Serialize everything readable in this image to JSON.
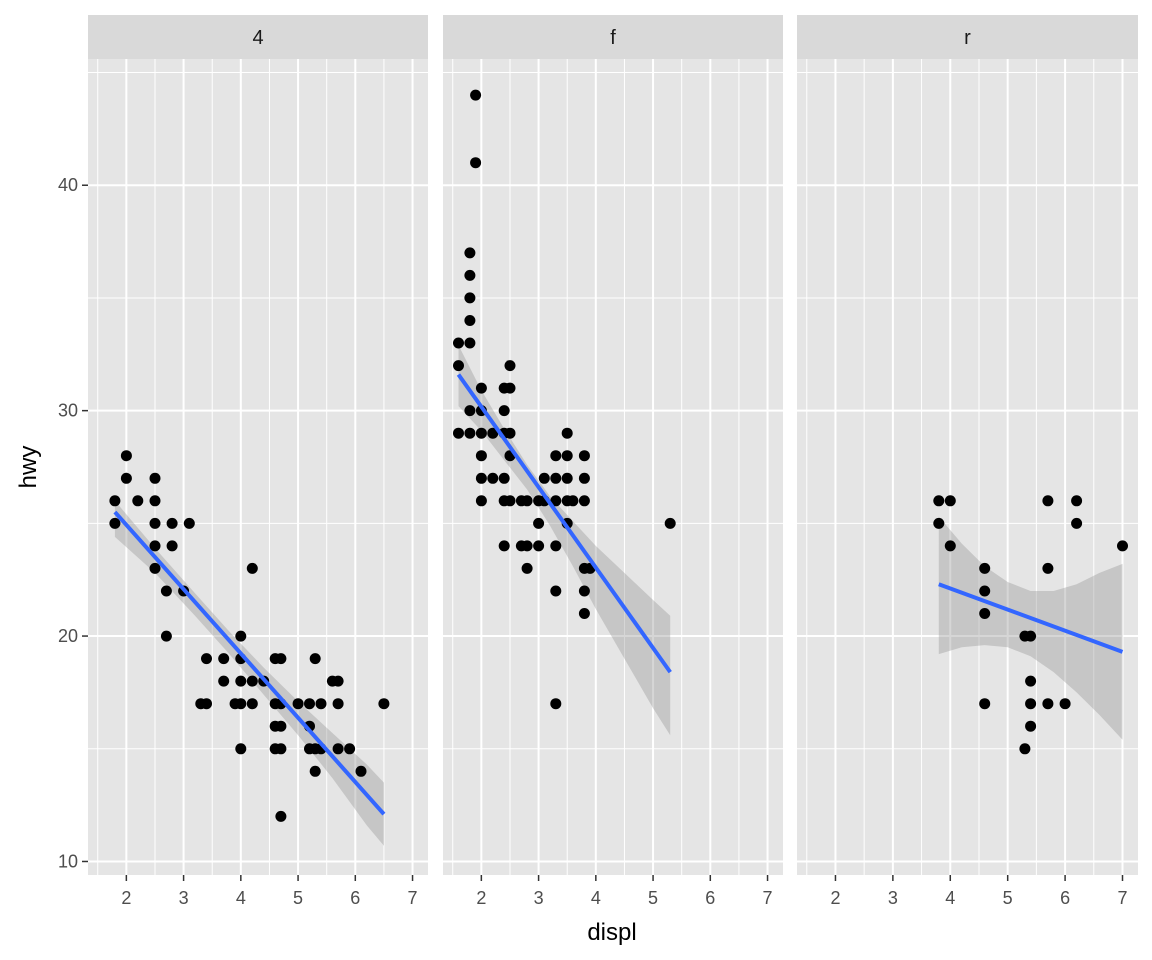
{
  "chart_data": {
    "type": "scatter",
    "xlabel": "displ",
    "ylabel": "hwy",
    "xlim": [
      1.33,
      7.27
    ],
    "ylim": [
      9.4,
      45.6
    ],
    "x_ticks": [
      2,
      3,
      4,
      5,
      6,
      7
    ],
    "y_ticks": [
      10,
      20,
      30,
      40
    ],
    "grid": true,
    "colors": {
      "panel_bg": "#e5e5e5",
      "strip_bg": "#d9d9d9",
      "grid": "#ffffff",
      "points": "#000000",
      "smooth_line": "#3366ff",
      "ribbon": "#999999"
    },
    "facets": [
      {
        "label": "4",
        "points": [
          [
            1.8,
            26
          ],
          [
            1.8,
            25
          ],
          [
            2.0,
            28
          ],
          [
            2.0,
            27
          ],
          [
            2.2,
            26
          ],
          [
            2.5,
            27
          ],
          [
            2.5,
            26
          ],
          [
            2.5,
            25
          ],
          [
            2.5,
            24
          ],
          [
            2.5,
            23
          ],
          [
            2.7,
            22
          ],
          [
            2.7,
            20
          ],
          [
            2.8,
            25
          ],
          [
            2.8,
            24
          ],
          [
            3.0,
            22
          ],
          [
            3.1,
            25
          ],
          [
            3.3,
            17
          ],
          [
            3.4,
            19
          ],
          [
            3.4,
            17
          ],
          [
            3.7,
            19
          ],
          [
            3.7,
            18
          ],
          [
            3.9,
            17
          ],
          [
            4.0,
            20
          ],
          [
            4.0,
            19
          ],
          [
            4.0,
            18
          ],
          [
            4.0,
            17
          ],
          [
            4.0,
            15
          ],
          [
            4.2,
            23
          ],
          [
            4.2,
            18
          ],
          [
            4.2,
            17
          ],
          [
            4.4,
            18
          ],
          [
            4.6,
            19
          ],
          [
            4.6,
            17
          ],
          [
            4.6,
            16
          ],
          [
            4.6,
            15
          ],
          [
            4.7,
            19
          ],
          [
            4.7,
            17
          ],
          [
            4.7,
            16
          ],
          [
            4.7,
            15
          ],
          [
            4.7,
            12
          ],
          [
            5.0,
            17
          ],
          [
            5.2,
            17
          ],
          [
            5.2,
            16
          ],
          [
            5.2,
            15
          ],
          [
            5.3,
            19
          ],
          [
            5.3,
            15
          ],
          [
            5.3,
            14
          ],
          [
            5.4,
            17
          ],
          [
            5.4,
            15
          ],
          [
            5.6,
            18
          ],
          [
            5.7,
            18
          ],
          [
            5.7,
            17
          ],
          [
            5.7,
            15
          ],
          [
            5.9,
            15
          ],
          [
            6.1,
            14
          ],
          [
            6.5,
            17
          ]
        ],
        "smooth": {
          "x": [
            1.8,
            6.5
          ],
          "y": [
            25.5,
            12.1
          ]
        },
        "ribbon": {
          "x": [
            1.8,
            2.5,
            3.2,
            3.8,
            4.4,
            5.0,
            5.6,
            6.2,
            6.5
          ],
          "upper": [
            26.0,
            23.9,
            21.9,
            20.2,
            18.6,
            17.1,
            15.7,
            14.3,
            13.5
          ],
          "lower": [
            24.4,
            22.8,
            20.9,
            19.2,
            17.4,
            15.6,
            13.7,
            11.6,
            10.7
          ]
        }
      },
      {
        "label": "f",
        "points": [
          [
            1.6,
            33
          ],
          [
            1.6,
            32
          ],
          [
            1.6,
            29
          ],
          [
            1.8,
            37
          ],
          [
            1.8,
            36
          ],
          [
            1.8,
            35
          ],
          [
            1.8,
            34
          ],
          [
            1.8,
            33
          ],
          [
            1.8,
            30
          ],
          [
            1.8,
            29
          ],
          [
            1.9,
            44
          ],
          [
            1.9,
            41
          ],
          [
            2.0,
            31
          ],
          [
            2.0,
            30
          ],
          [
            2.0,
            29
          ],
          [
            2.0,
            28
          ],
          [
            2.0,
            27
          ],
          [
            2.0,
            26
          ],
          [
            2.2,
            29
          ],
          [
            2.2,
            27
          ],
          [
            2.4,
            31
          ],
          [
            2.4,
            30
          ],
          [
            2.4,
            29
          ],
          [
            2.4,
            27
          ],
          [
            2.4,
            26
          ],
          [
            2.4,
            24
          ],
          [
            2.5,
            32
          ],
          [
            2.5,
            31
          ],
          [
            2.5,
            29
          ],
          [
            2.5,
            28
          ],
          [
            2.5,
            26
          ],
          [
            2.7,
            26
          ],
          [
            2.7,
            24
          ],
          [
            2.8,
            26
          ],
          [
            2.8,
            24
          ],
          [
            2.8,
            23
          ],
          [
            3.0,
            26
          ],
          [
            3.0,
            25
          ],
          [
            3.0,
            24
          ],
          [
            3.1,
            27
          ],
          [
            3.1,
            26
          ],
          [
            3.3,
            28
          ],
          [
            3.3,
            27
          ],
          [
            3.3,
            26
          ],
          [
            3.3,
            24
          ],
          [
            3.3,
            22
          ],
          [
            3.3,
            17
          ],
          [
            3.5,
            29
          ],
          [
            3.5,
            28
          ],
          [
            3.5,
            27
          ],
          [
            3.5,
            26
          ],
          [
            3.5,
            25
          ],
          [
            3.6,
            26
          ],
          [
            3.8,
            28
          ],
          [
            3.8,
            27
          ],
          [
            3.8,
            26
          ],
          [
            3.8,
            23
          ],
          [
            3.8,
            22
          ],
          [
            3.8,
            21
          ],
          [
            3.9,
            23
          ],
          [
            5.3,
            25
          ]
        ],
        "smooth": {
          "x": [
            1.6,
            5.3
          ],
          "y": [
            31.6,
            18.4
          ]
        },
        "ribbon": {
          "x": [
            1.6,
            2.0,
            2.4,
            2.8,
            3.2,
            3.6,
            4.0,
            4.5,
            5.0,
            5.3
          ],
          "upper": [
            32.9,
            30.9,
            29.2,
            27.6,
            26.2,
            25.1,
            24.0,
            22.8,
            21.6,
            20.9
          ],
          "lower": [
            30.2,
            29.1,
            27.8,
            26.5,
            24.9,
            23.1,
            21.2,
            19.0,
            16.8,
            15.6
          ]
        }
      },
      {
        "label": "r",
        "points": [
          [
            3.8,
            26
          ],
          [
            3.8,
            25
          ],
          [
            4.0,
            26
          ],
          [
            4.0,
            24
          ],
          [
            4.6,
            23
          ],
          [
            4.6,
            22
          ],
          [
            4.6,
            21
          ],
          [
            4.6,
            17
          ],
          [
            5.3,
            20
          ],
          [
            5.3,
            15
          ],
          [
            5.4,
            20
          ],
          [
            5.4,
            18
          ],
          [
            5.4,
            17
          ],
          [
            5.4,
            16
          ],
          [
            5.7,
            26
          ],
          [
            5.7,
            23
          ],
          [
            5.7,
            17
          ],
          [
            6.0,
            17
          ],
          [
            6.2,
            26
          ],
          [
            6.2,
            25
          ],
          [
            7.0,
            24
          ]
        ],
        "smooth": {
          "x": [
            3.8,
            7.0
          ],
          "y": [
            22.3,
            19.3
          ]
        },
        "ribbon": {
          "x": [
            3.8,
            4.2,
            4.6,
            5.0,
            5.4,
            5.8,
            6.2,
            6.6,
            7.0
          ],
          "upper": [
            25.3,
            24.1,
            23.1,
            22.4,
            22.0,
            22.0,
            22.3,
            22.8,
            23.2
          ],
          "lower": [
            19.2,
            19.5,
            19.6,
            19.5,
            19.1,
            18.4,
            17.5,
            16.5,
            15.4
          ]
        }
      }
    ]
  }
}
